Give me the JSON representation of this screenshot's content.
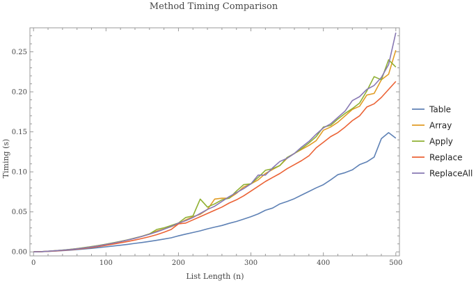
{
  "chart_data": {
    "type": "line",
    "title": "Method Timing Comparison",
    "xlabel": "List Length (n)",
    "ylabel": "Timing (s)",
    "xlim": [
      -5,
      505
    ],
    "ylim": [
      -0.005,
      0.28
    ],
    "xticks": [
      0,
      100,
      200,
      300,
      400,
      500
    ],
    "yticks": [
      0.0,
      0.05,
      0.1,
      0.15,
      0.2,
      0.25
    ],
    "ytick_labels": [
      "0.00",
      "0.05",
      "0.10",
      "0.15",
      "0.20",
      "0.25"
    ],
    "grid": false,
    "legend_position": "right",
    "x": [
      0,
      10,
      20,
      30,
      40,
      50,
      60,
      70,
      80,
      90,
      100,
      110,
      120,
      130,
      140,
      150,
      160,
      170,
      180,
      190,
      200,
      210,
      220,
      230,
      240,
      250,
      260,
      270,
      280,
      290,
      300,
      310,
      320,
      330,
      340,
      350,
      360,
      370,
      380,
      390,
      400,
      410,
      420,
      430,
      440,
      450,
      460,
      470,
      480,
      490,
      500
    ],
    "series": [
      {
        "name": "Table",
        "color": "#5e81b5",
        "values": [
          0.0,
          0.0002,
          0.0006,
          0.001,
          0.0015,
          0.0021,
          0.0028,
          0.0036,
          0.0044,
          0.0053,
          0.0063,
          0.0073,
          0.0083,
          0.0094,
          0.0106,
          0.0118,
          0.0131,
          0.0145,
          0.016,
          0.0176,
          0.02,
          0.0222,
          0.0242,
          0.0263,
          0.0288,
          0.031,
          0.033,
          0.0357,
          0.038,
          0.041,
          0.044,
          0.0475,
          0.052,
          0.0548,
          0.06,
          0.063,
          0.0665,
          0.071,
          0.0755,
          0.08,
          0.084,
          0.09,
          0.0965,
          0.099,
          0.1025,
          0.109,
          0.1125,
          0.1185,
          0.1415,
          0.149,
          0.142
        ]
      },
      {
        "name": "Array",
        "color": "#e19c24",
        "values": [
          0.0,
          0.0003,
          0.0008,
          0.0014,
          0.0021,
          0.003,
          0.004,
          0.0052,
          0.0065,
          0.008,
          0.0095,
          0.0112,
          0.013,
          0.015,
          0.0172,
          0.0195,
          0.0225,
          0.026,
          0.0285,
          0.0315,
          0.035,
          0.04,
          0.044,
          0.047,
          0.053,
          0.066,
          0.067,
          0.067,
          0.073,
          0.081,
          0.085,
          0.09,
          0.098,
          0.103,
          0.108,
          0.117,
          0.123,
          0.128,
          0.133,
          0.139,
          0.152,
          0.156,
          0.162,
          0.17,
          0.178,
          0.182,
          0.196,
          0.198,
          0.215,
          0.222,
          0.252
        ]
      },
      {
        "name": "Apply",
        "color": "#8fb032",
        "values": [
          0.0,
          0.0003,
          0.0008,
          0.0014,
          0.0022,
          0.0031,
          0.0041,
          0.0053,
          0.0066,
          0.008,
          0.0096,
          0.0113,
          0.0131,
          0.0151,
          0.0173,
          0.0196,
          0.0225,
          0.028,
          0.03,
          0.033,
          0.036,
          0.043,
          0.045,
          0.066,
          0.056,
          0.06,
          0.065,
          0.067,
          0.076,
          0.084,
          0.085,
          0.093,
          0.102,
          0.104,
          0.108,
          0.118,
          0.123,
          0.129,
          0.136,
          0.144,
          0.156,
          0.158,
          0.166,
          0.173,
          0.179,
          0.186,
          0.201,
          0.219,
          0.215,
          0.24,
          0.231
        ]
      },
      {
        "name": "Replace",
        "color": "#eb6235",
        "values": [
          0.0,
          0.0003,
          0.0007,
          0.0012,
          0.0018,
          0.0026,
          0.0034,
          0.0044,
          0.0055,
          0.0068,
          0.0082,
          0.0097,
          0.0113,
          0.013,
          0.0148,
          0.0168,
          0.019,
          0.0215,
          0.0245,
          0.028,
          0.035,
          0.036,
          0.04,
          0.044,
          0.048,
          0.052,
          0.056,
          0.061,
          0.065,
          0.07,
          0.076,
          0.082,
          0.088,
          0.093,
          0.098,
          0.104,
          0.109,
          0.114,
          0.12,
          0.13,
          0.137,
          0.144,
          0.149,
          0.156,
          0.164,
          0.17,
          0.181,
          0.185,
          0.193,
          0.203,
          0.213
        ]
      },
      {
        "name": "ReplaceAll",
        "color": "#8778b3",
        "values": [
          0.0,
          0.0003,
          0.0008,
          0.0014,
          0.0021,
          0.0029,
          0.0039,
          0.005,
          0.0063,
          0.0077,
          0.0093,
          0.011,
          0.0128,
          0.0148,
          0.017,
          0.0194,
          0.022,
          0.025,
          0.0283,
          0.0318,
          0.036,
          0.039,
          0.043,
          0.048,
          0.053,
          0.057,
          0.063,
          0.069,
          0.074,
          0.079,
          0.085,
          0.096,
          0.096,
          0.105,
          0.113,
          0.117,
          0.123,
          0.131,
          0.138,
          0.147,
          0.155,
          0.16,
          0.168,
          0.176,
          0.189,
          0.194,
          0.203,
          0.208,
          0.218,
          0.234,
          0.274
        ]
      }
    ]
  }
}
